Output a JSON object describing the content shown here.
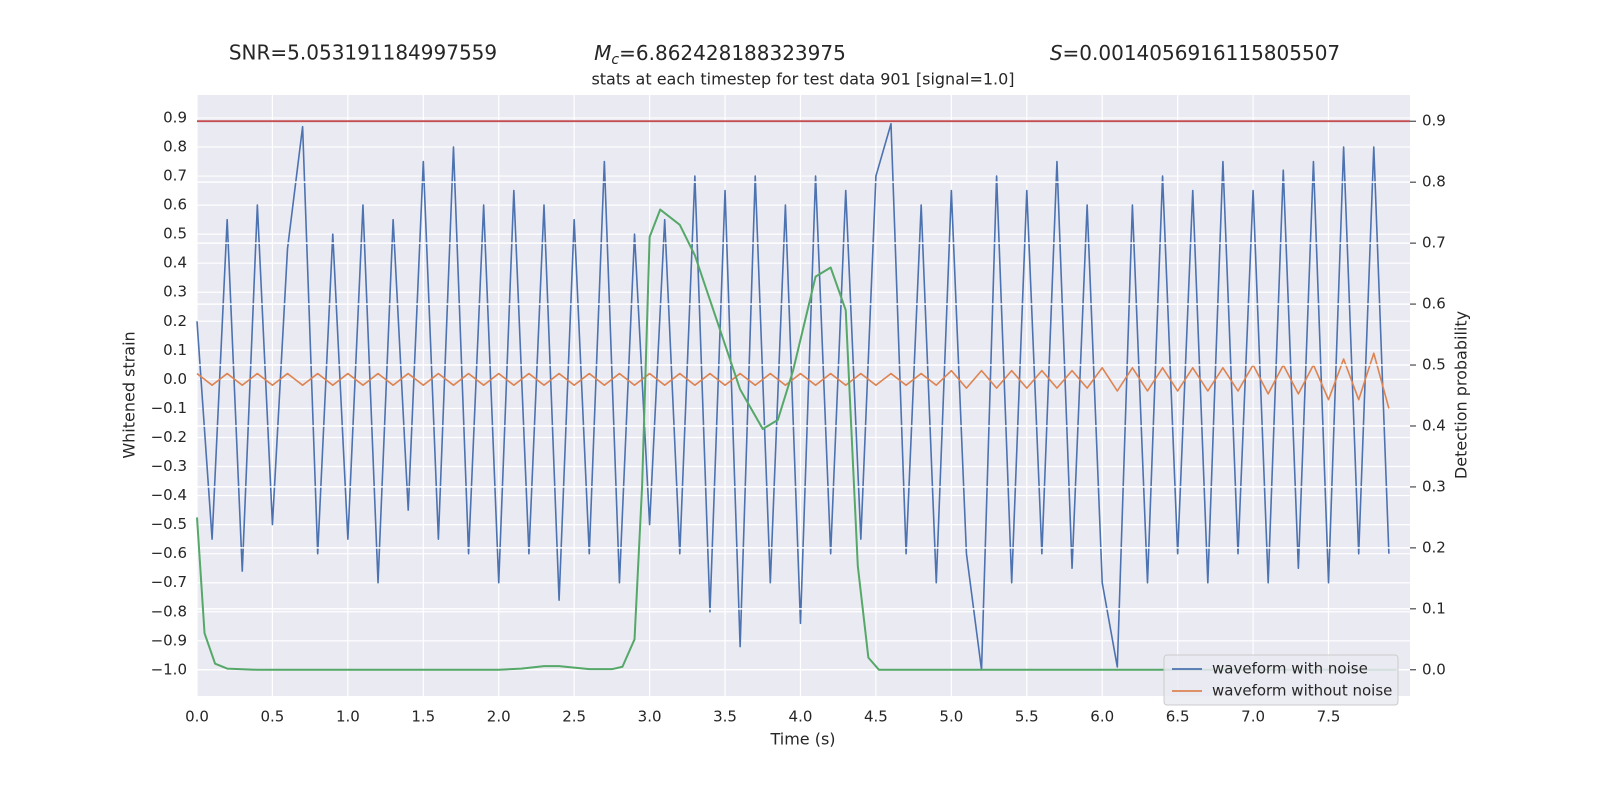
{
  "chart_data": {
    "type": "line",
    "annotations": [
      {
        "text": "SNR=5.053191184997559"
      },
      {
        "symbol": "M",
        "subscript": "c",
        "text": "=6.862428188323975"
      },
      {
        "symbol": "S",
        "text": "=0.0014056916115805507"
      }
    ],
    "title": "stats at each timestep for test data 901 [signal=1.0]",
    "xlabel": "Time (s)",
    "ylabel": "Whitened strain",
    "y2label": "Detection probability",
    "xlim": [
      0,
      8.04
    ],
    "ylim": [
      -1.09,
      0.979
    ],
    "y2lim": [
      -0.043,
      0.943
    ],
    "xticks": [
      {
        "value": 0,
        "label": "0.0"
      },
      {
        "value": 0.5,
        "label": "0.5"
      },
      {
        "value": 1,
        "label": "1.0"
      },
      {
        "value": 1.5,
        "label": "1.5"
      },
      {
        "value": 2,
        "label": "2.0"
      },
      {
        "value": 2.5,
        "label": "2.5"
      },
      {
        "value": 3,
        "label": "3.0"
      },
      {
        "value": 3.5,
        "label": "3.5"
      },
      {
        "value": 4,
        "label": "4.0"
      },
      {
        "value": 4.5,
        "label": "4.5"
      },
      {
        "value": 5,
        "label": "5.0"
      },
      {
        "value": 5.5,
        "label": "5.5"
      },
      {
        "value": 6,
        "label": "6.0"
      },
      {
        "value": 6.5,
        "label": "6.5"
      },
      {
        "value": 7,
        "label": "7.0"
      },
      {
        "value": 7.5,
        "label": "7.5"
      }
    ],
    "yticks": [
      {
        "value": -1,
        "label": "−1.0"
      },
      {
        "value": -0.9,
        "label": "−0.9"
      },
      {
        "value": -0.8,
        "label": "−0.8"
      },
      {
        "value": -0.7,
        "label": "−0.7"
      },
      {
        "value": -0.6,
        "label": "−0.6"
      },
      {
        "value": -0.5,
        "label": "−0.5"
      },
      {
        "value": -0.4,
        "label": "−0.4"
      },
      {
        "value": -0.3,
        "label": "−0.3"
      },
      {
        "value": -0.2,
        "label": "−0.2"
      },
      {
        "value": -0.1,
        "label": "−0.1"
      },
      {
        "value": 0,
        "label": "0.0"
      },
      {
        "value": 0.1,
        "label": "0.1"
      },
      {
        "value": 0.2,
        "label": "0.2"
      },
      {
        "value": 0.3,
        "label": "0.3"
      },
      {
        "value": 0.4,
        "label": "0.4"
      },
      {
        "value": 0.5,
        "label": "0.5"
      },
      {
        "value": 0.6,
        "label": "0.6"
      },
      {
        "value": 0.7,
        "label": "0.7"
      },
      {
        "value": 0.8,
        "label": "0.8"
      },
      {
        "value": 0.9,
        "label": "0.9"
      }
    ],
    "y2ticks": [
      {
        "value": 0,
        "label": "0.0"
      },
      {
        "value": 0.1,
        "label": "0.1"
      },
      {
        "value": 0.2,
        "label": "0.2"
      },
      {
        "value": 0.3,
        "label": "0.3"
      },
      {
        "value": 0.4,
        "label": "0.4"
      },
      {
        "value": 0.5,
        "label": "0.5"
      },
      {
        "value": 0.6,
        "label": "0.6"
      },
      {
        "value": 0.7,
        "label": "0.7"
      },
      {
        "value": 0.8,
        "label": "0.8"
      },
      {
        "value": 0.9,
        "label": "0.9"
      }
    ],
    "grid": true,
    "legend": "lower right",
    "x": [
      0.0,
      0.1,
      0.2,
      0.3,
      0.4,
      0.5,
      0.6,
      0.7,
      0.8,
      0.9,
      1.0,
      1.1,
      1.2,
      1.3,
      1.4,
      1.5,
      1.6,
      1.7,
      1.8,
      1.9,
      2.0,
      2.1,
      2.2,
      2.3,
      2.4,
      2.5,
      2.6,
      2.7,
      2.8,
      2.9,
      3.0,
      3.1,
      3.2,
      3.3,
      3.4,
      3.5,
      3.6,
      3.7,
      3.8,
      3.9,
      4.0,
      4.1,
      4.2,
      4.3,
      4.4,
      4.5,
      4.6,
      4.7,
      4.8,
      4.9,
      5.0,
      5.1,
      5.2,
      5.3,
      5.4,
      5.5,
      5.6,
      5.7,
      5.8,
      5.9,
      6.0,
      6.1,
      6.2,
      6.3,
      6.4,
      6.5,
      6.6,
      6.7,
      6.8,
      6.9,
      7.0,
      7.1,
      7.2,
      7.3,
      7.4,
      7.5,
      7.6,
      7.7,
      7.8,
      7.9
    ],
    "series": [
      {
        "name": "waveform with noise",
        "color": "#4c72b0",
        "values": [
          0.2,
          -0.55,
          0.55,
          -0.66,
          0.6,
          -0.5,
          0.45,
          0.87,
          -0.6,
          0.5,
          -0.55,
          0.6,
          -0.7,
          0.55,
          -0.45,
          0.75,
          -0.55,
          0.8,
          -0.6,
          0.6,
          -0.7,
          0.65,
          -0.6,
          0.6,
          -0.76,
          0.55,
          -0.6,
          0.75,
          -0.7,
          0.5,
          -0.5,
          0.55,
          -0.6,
          0.7,
          -0.8,
          0.65,
          -0.92,
          0.7,
          -0.7,
          0.6,
          -0.84,
          0.7,
          -0.6,
          0.65,
          -0.55,
          0.7,
          0.88,
          -0.6,
          0.6,
          -0.7,
          0.65,
          -0.6,
          -1.0,
          0.7,
          -0.7,
          0.65,
          -0.6,
          0.75,
          -0.65,
          0.6,
          -0.7,
          -0.99,
          0.6,
          -0.7,
          0.7,
          -0.6,
          0.65,
          -0.7,
          0.75,
          -0.6,
          0.65,
          -0.7,
          0.72,
          -0.65,
          0.75,
          -0.7,
          0.8,
          -0.6,
          0.8,
          -0.6
        ]
      },
      {
        "name": "waveform without noise",
        "color": "#dd8452",
        "values": [
          0.02,
          -0.02,
          0.02,
          -0.02,
          0.02,
          -0.02,
          0.02,
          -0.02,
          0.02,
          -0.02,
          0.02,
          -0.02,
          0.02,
          -0.02,
          0.02,
          -0.02,
          0.02,
          -0.02,
          0.02,
          -0.02,
          0.02,
          -0.02,
          0.02,
          -0.02,
          0.02,
          -0.02,
          0.02,
          -0.02,
          0.02,
          -0.02,
          0.02,
          -0.02,
          0.02,
          -0.02,
          0.02,
          -0.02,
          0.02,
          -0.02,
          0.02,
          -0.02,
          0.02,
          -0.02,
          0.02,
          -0.02,
          0.02,
          -0.02,
          0.02,
          -0.02,
          0.02,
          -0.02,
          0.03,
          -0.03,
          0.03,
          -0.03,
          0.03,
          -0.03,
          0.03,
          -0.03,
          0.03,
          -0.03,
          0.04,
          -0.04,
          0.04,
          -0.04,
          0.04,
          -0.04,
          0.04,
          -0.04,
          0.04,
          -0.04,
          0.05,
          -0.05,
          0.05,
          -0.05,
          0.05,
          -0.07,
          0.07,
          -0.07,
          0.09,
          -0.1
        ]
      },
      {
        "color": "#55a868",
        "axis": "y2",
        "x": [
          0.0,
          0.05,
          0.12,
          0.2,
          0.4,
          1.0,
          2.0,
          2.15,
          2.3,
          2.4,
          2.6,
          2.75,
          2.82,
          2.9,
          2.95,
          3.0,
          3.07,
          3.2,
          3.3,
          3.45,
          3.6,
          3.75,
          3.85,
          3.95,
          4.1,
          4.2,
          4.3,
          4.38,
          4.45,
          4.52,
          5.0,
          6.0,
          7.0,
          7.95
        ],
        "values": [
          0.25,
          0.06,
          0.01,
          0.002,
          0.0,
          0.0,
          0.0,
          0.002,
          0.006,
          0.006,
          0.001,
          0.001,
          0.005,
          0.05,
          0.3,
          0.71,
          0.755,
          0.73,
          0.68,
          0.57,
          0.46,
          0.395,
          0.41,
          0.49,
          0.645,
          0.66,
          0.59,
          0.17,
          0.02,
          0.0,
          0.0,
          0.0,
          0.0,
          0.0
        ]
      }
    ],
    "hlines": [
      {
        "value": 0.9,
        "axis": "y2",
        "color": "#c44e52"
      }
    ]
  }
}
